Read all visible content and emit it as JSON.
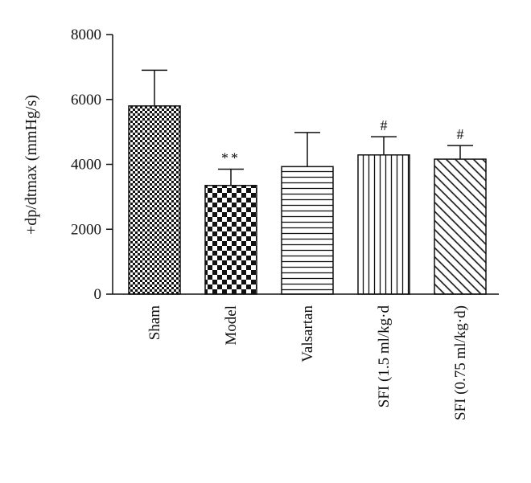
{
  "chart_data": {
    "type": "bar",
    "title": "",
    "xlabel": "",
    "ylabel": "+dp/dtmax (mmHg/s)",
    "ylim": [
      0,
      8000
    ],
    "yticks": [
      "0",
      "2000",
      "4000",
      "6000",
      "8000"
    ],
    "grid": false,
    "categories": [
      "Sham",
      "Model",
      "Valsartan",
      "SFI (1.5 ml/kg·d",
      "SFI (0.75 ml/kg·d)"
    ],
    "values": [
      5800,
      3350,
      3930,
      4290,
      4160
    ],
    "errors": [
      1100,
      500,
      1050,
      560,
      420
    ],
    "annotations": [
      "",
      "**",
      "",
      "#",
      "#"
    ],
    "patterns": [
      "fine-checker",
      "coarse-checker",
      "horizontal-lines",
      "vertical-lines",
      "diagonal-lines"
    ],
    "colors": {
      "bar_fill": "#ffffff",
      "pattern": "#111111",
      "axis": "#111111"
    }
  }
}
